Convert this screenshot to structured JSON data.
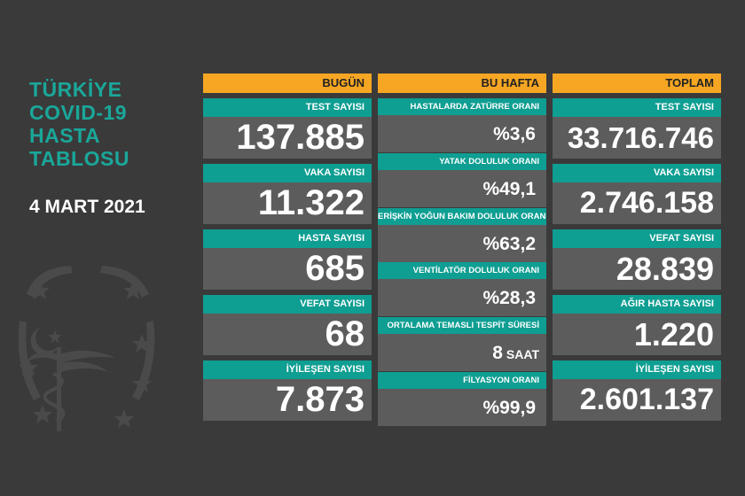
{
  "title": [
    "TÜRKİYE",
    "COVID-19",
    "HASTA",
    "TABLOSU"
  ],
  "date": "4 MART 2021",
  "today": {
    "header": "BUGÜN",
    "items": [
      {
        "label": "TEST SAYISI",
        "value": "137.885"
      },
      {
        "label": "VAKA SAYISI",
        "value": "11.322"
      },
      {
        "label": "HASTA SAYISI",
        "value": "685"
      },
      {
        "label": "VEFAT SAYISI",
        "value": "68"
      },
      {
        "label": "İYİLEŞEN SAYISI",
        "value": "7.873"
      }
    ]
  },
  "week": {
    "header": "BU HAFTA",
    "items": [
      {
        "label": "HASTALARDA ZATÜRRE ORANI",
        "value": "%3,6",
        "unit": ""
      },
      {
        "label": "YATAK DOLULUK ORANI",
        "value": "%49,1",
        "unit": ""
      },
      {
        "label": "ERİŞKİN YOĞUN BAKIM DOLULUK ORANI",
        "value": "%63,2",
        "unit": ""
      },
      {
        "label": "VENTİLATÖR DOLULUK ORANI",
        "value": "%28,3",
        "unit": ""
      },
      {
        "label": "ORTALAMA TEMASLI TESPİT SÜRESİ",
        "value": "8",
        "unit": "SAAT"
      },
      {
        "label": "FİLYASYON ORANI",
        "value": "%99,9",
        "unit": ""
      }
    ]
  },
  "total": {
    "header": "TOPLAM",
    "items": [
      {
        "label": "TEST SAYISI",
        "value": "33.716.746"
      },
      {
        "label": "VAKA SAYISI",
        "value": "2.746.158"
      },
      {
        "label": "VEFAT SAYISI",
        "value": "28.839"
      },
      {
        "label": "AĞIR HASTA SAYISI",
        "value": "1.220"
      },
      {
        "label": "İYİLEŞEN SAYISI",
        "value": "2.601.137"
      }
    ]
  },
  "colors": {
    "background": "#3a3a3a",
    "title": "#1aa79a",
    "header": "#f6a623",
    "label_bar": "#0f9e92",
    "value_box": "#5c5c5c"
  },
  "icons": {
    "emblem": "health-ministry-emblem-icon"
  }
}
